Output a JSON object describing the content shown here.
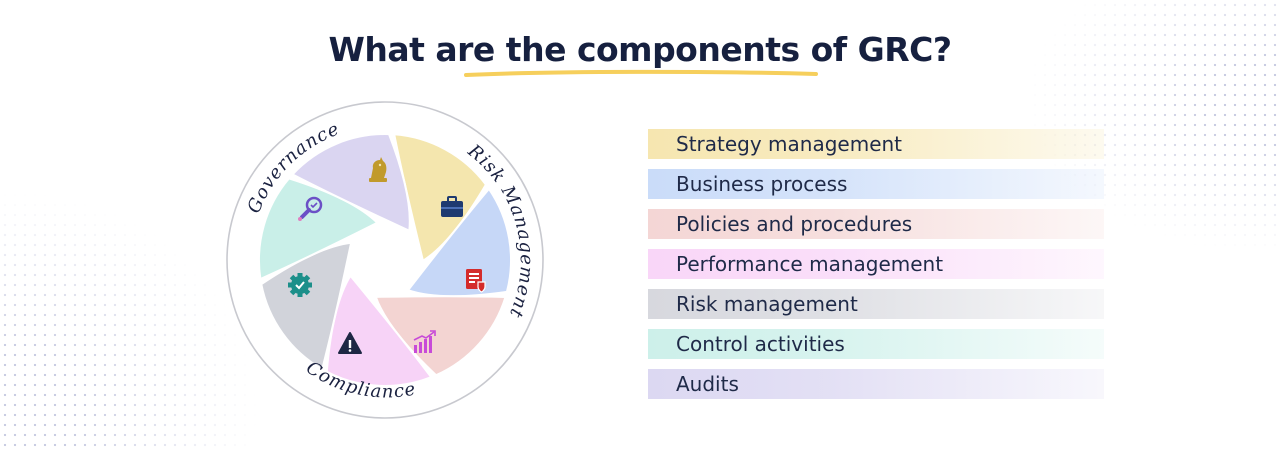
{
  "title": "What are the components of GRC?",
  "colors": {
    "title": "#16203f",
    "underline": "#f6cf5c",
    "ring": "#c8c9cf"
  },
  "wheel": {
    "ring_labels": [
      {
        "id": "governance",
        "text": "Governance"
      },
      {
        "id": "risk",
        "text": "Risk Management"
      },
      {
        "id": "compliance",
        "text": "Compliance"
      }
    ],
    "segments": [
      {
        "id": "strategy",
        "color": "#f4e6ae",
        "icon": "chess-knight-icon",
        "icon_color": "#c19a2c"
      },
      {
        "id": "business",
        "color": "#c6d7f7",
        "icon": "briefcase-icon",
        "icon_color": "#1e3a70"
      },
      {
        "id": "policies",
        "color": "#f3d4d2",
        "icon": "document-shield-icon",
        "icon_color": "#d42b2b"
      },
      {
        "id": "performance",
        "color": "#f7d3f7",
        "icon": "growth-chart-icon",
        "icon_color": "#c84bd8"
      },
      {
        "id": "risk",
        "color": "#d1d3da",
        "icon": "warning-triangle-icon",
        "icon_color": "#1e2744"
      },
      {
        "id": "control",
        "color": "#c9efe8",
        "icon": "gear-check-icon",
        "icon_color": "#1c8f8a"
      },
      {
        "id": "audits",
        "color": "#dad5f1",
        "icon": "magnifier-check-icon",
        "icon_color": "#6b50c6"
      }
    ]
  },
  "components": [
    {
      "label": "Strategy management",
      "color": "#f6e6b0"
    },
    {
      "label": "Business process",
      "color": "#cadcf9"
    },
    {
      "label": "Policies and procedures",
      "color": "#f4d6d5"
    },
    {
      "label": "Performance management",
      "color": "#f9d6f8"
    },
    {
      "label": "Risk management",
      "color": "#d7d8de"
    },
    {
      "label": "Control activities",
      "color": "#cdf0ea"
    },
    {
      "label": "Audits",
      "color": "#dcd8f2"
    }
  ]
}
